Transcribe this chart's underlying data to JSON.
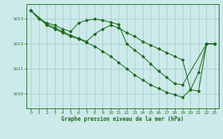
{
  "background_color": "#cceaea",
  "grid_color": "#aacfcf",
  "line_color": "#1a6b1a",
  "xlabel": "Graphe pression niveau de la mer (hPa)",
  "xlim": [
    -0.5,
    23.5
  ],
  "ylim": [
    1009.4,
    1013.6
  ],
  "yticks": [
    1010,
    1011,
    1012,
    1013
  ],
  "xticks": [
    0,
    1,
    2,
    3,
    4,
    5,
    6,
    7,
    8,
    9,
    10,
    11,
    12,
    13,
    14,
    15,
    16,
    17,
    18,
    19,
    20,
    21,
    22,
    23
  ],
  "series": {
    "line1": {
      "x": [
        0,
        1,
        2,
        3,
        4,
        5,
        6,
        7,
        8,
        9,
        10,
        11,
        12,
        13,
        14,
        15,
        16,
        17,
        18,
        19,
        22,
        23
      ],
      "y": [
        1013.35,
        1013.0,
        1012.85,
        1012.75,
        1012.6,
        1012.5,
        1012.85,
        1012.95,
        1013.0,
        1012.95,
        1012.87,
        1012.78,
        1012.0,
        1011.75,
        1011.5,
        1011.2,
        1010.9,
        1010.65,
        1010.4,
        1010.35,
        1012.0,
        1012.0
      ]
    },
    "line2": {
      "x": [
        0,
        2,
        3,
        4,
        5,
        6,
        7,
        8,
        9,
        10,
        11,
        12,
        13,
        14,
        15,
        16,
        17,
        18,
        19,
        20,
        21,
        22,
        23
      ],
      "y": [
        1013.35,
        1012.8,
        1012.65,
        1012.5,
        1012.35,
        1012.22,
        1012.1,
        1012.4,
        1012.6,
        1012.75,
        1012.65,
        1012.45,
        1012.3,
        1012.1,
        1011.95,
        1011.8,
        1011.65,
        1011.5,
        1011.35,
        1010.15,
        1010.1,
        1012.0,
        1012.0
      ]
    },
    "line3": {
      "x": [
        0,
        2,
        3,
        4,
        5,
        6,
        7,
        8,
        9,
        10,
        11,
        12,
        13,
        14,
        15,
        16,
        17,
        18,
        19,
        20,
        21,
        22,
        23
      ],
      "y": [
        1013.35,
        1012.75,
        1012.6,
        1012.45,
        1012.3,
        1012.2,
        1012.05,
        1011.9,
        1011.7,
        1011.5,
        1011.25,
        1011.0,
        1010.75,
        1010.55,
        1010.35,
        1010.2,
        1010.05,
        1009.95,
        1009.85,
        1010.15,
        1010.85,
        1012.0,
        1012.0
      ]
    }
  }
}
